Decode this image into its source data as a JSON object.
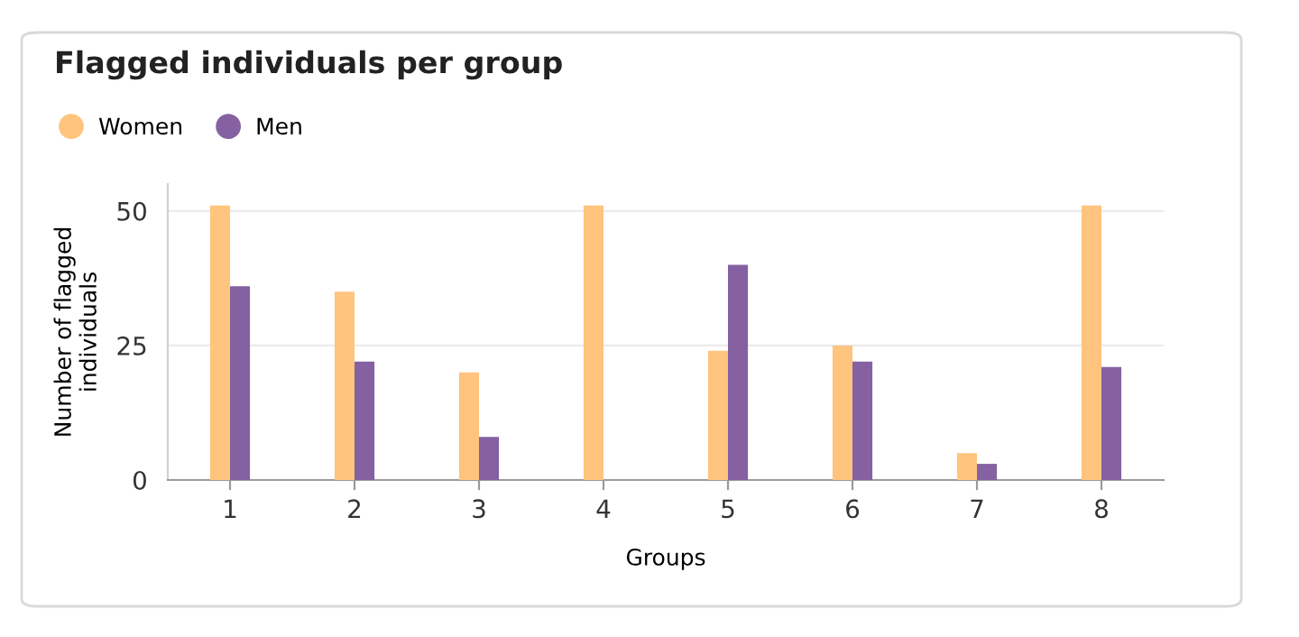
{
  "chart_data": {
    "type": "bar",
    "title": "Flagged individuals per group",
    "xlabel": "Groups",
    "ylabel": "Number of flagged\nindividuals",
    "categories": [
      "1",
      "2",
      "3",
      "4",
      "5",
      "6",
      "7",
      "8"
    ],
    "series": [
      {
        "name": "Women",
        "color": "#ffc47e",
        "values": [
          51,
          35,
          20,
          51,
          24,
          25,
          5,
          51
        ]
      },
      {
        "name": "Men",
        "color": "#8561a1",
        "values": [
          36,
          22,
          8,
          0,
          40,
          22,
          3,
          21
        ]
      }
    ],
    "ylim": [
      0,
      55
    ],
    "yticks": [
      0,
      25,
      50
    ],
    "grid": "y",
    "legend": "top left"
  }
}
